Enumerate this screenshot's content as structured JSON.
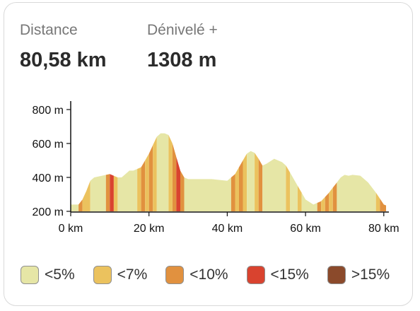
{
  "stats": {
    "distance_label": "Distance",
    "distance_value": "80,58 km",
    "elevation_label": "Dénivelé +",
    "elevation_value": "1308 m"
  },
  "chart_data": {
    "type": "area",
    "title": "",
    "xlabel": "",
    "ylabel": "",
    "xlim": [
      0,
      80.58
    ],
    "ylim": [
      200,
      850
    ],
    "x_ticks": [
      0,
      20,
      40,
      60,
      80
    ],
    "x_tick_labels": [
      "0 km",
      "20 km",
      "40 km",
      "60 km",
      "80 km"
    ],
    "y_ticks": [
      200,
      400,
      600,
      800
    ],
    "y_tick_labels": [
      "200 m",
      "400 m",
      "600 m",
      "800 m"
    ],
    "grid": false,
    "series": [
      {
        "x": [
          0,
          2,
          3,
          4,
          5,
          6,
          8,
          10,
          11,
          12,
          13,
          14,
          15,
          16,
          18,
          20,
          21,
          22,
          23,
          24,
          25,
          26,
          27,
          28,
          29,
          30,
          33,
          36,
          40,
          42,
          44,
          45,
          46,
          47,
          48,
          49,
          50,
          52,
          54,
          55,
          56,
          58,
          60,
          62,
          64,
          66,
          68,
          69,
          70,
          71,
          72,
          74,
          76,
          78,
          80,
          80.58
        ],
        "y": [
          240,
          240,
          270,
          320,
          380,
          400,
          410,
          420,
          410,
          400,
          400,
          420,
          440,
          440,
          460,
          540,
          590,
          640,
          660,
          660,
          650,
          600,
          520,
          440,
          400,
          390,
          390,
          390,
          380,
          420,
          500,
          540,
          555,
          545,
          510,
          470,
          480,
          510,
          490,
          470,
          430,
          350,
          270,
          240,
          260,
          310,
          370,
          400,
          415,
          410,
          415,
          410,
          370,
          310,
          240,
          235
        ]
      }
    ],
    "grade_segments": [
      {
        "x0": 0,
        "x1": 2,
        "grade": "<5%"
      },
      {
        "x0": 2,
        "x1": 3,
        "grade": "<10%"
      },
      {
        "x0": 3,
        "x1": 5,
        "grade": "<7%"
      },
      {
        "x0": 5,
        "x1": 9,
        "grade": "<5%"
      },
      {
        "x0": 9,
        "x1": 10,
        "grade": "<10%"
      },
      {
        "x0": 10,
        "x1": 11,
        "grade": "<15%"
      },
      {
        "x0": 11,
        "x1": 12,
        "grade": "<7%"
      },
      {
        "x0": 12,
        "x1": 17,
        "grade": "<5%"
      },
      {
        "x0": 17,
        "x1": 18,
        "grade": "<7%"
      },
      {
        "x0": 18,
        "x1": 19,
        "grade": "<10%"
      },
      {
        "x0": 19,
        "x1": 20,
        "grade": "<7%"
      },
      {
        "x0": 20,
        "x1": 21,
        "grade": "<10%"
      },
      {
        "x0": 21,
        "x1": 22,
        "grade": "<7%"
      },
      {
        "x0": 22,
        "x1": 25,
        "grade": "<5%"
      },
      {
        "x0": 25,
        "x1": 26,
        "grade": "<7%"
      },
      {
        "x0": 26,
        "x1": 27,
        "grade": "<10%"
      },
      {
        "x0": 27,
        "x1": 28,
        "grade": "<15%"
      },
      {
        "x0": 28,
        "x1": 29,
        "grade": "<10%"
      },
      {
        "x0": 29,
        "x1": 41,
        "grade": "<5%"
      },
      {
        "x0": 41,
        "x1": 42,
        "grade": "<10%"
      },
      {
        "x0": 42,
        "x1": 43,
        "grade": "<7%"
      },
      {
        "x0": 43,
        "x1": 44,
        "grade": "<10%"
      },
      {
        "x0": 44,
        "x1": 45,
        "grade": "<7%"
      },
      {
        "x0": 45,
        "x1": 47,
        "grade": "<5%"
      },
      {
        "x0": 47,
        "x1": 48,
        "grade": "<7%"
      },
      {
        "x0": 48,
        "x1": 49,
        "grade": "<10%"
      },
      {
        "x0": 49,
        "x1": 55,
        "grade": "<5%"
      },
      {
        "x0": 55,
        "x1": 56,
        "grade": "<7%"
      },
      {
        "x0": 56,
        "x1": 58,
        "grade": "<5%"
      },
      {
        "x0": 58,
        "x1": 59,
        "grade": "<7%"
      },
      {
        "x0": 59,
        "x1": 63,
        "grade": "<5%"
      },
      {
        "x0": 63,
        "x1": 64,
        "grade": "<10%"
      },
      {
        "x0": 64,
        "x1": 65,
        "grade": "<7%"
      },
      {
        "x0": 65,
        "x1": 66,
        "grade": "<10%"
      },
      {
        "x0": 66,
        "x1": 67,
        "grade": "<7%"
      },
      {
        "x0": 67,
        "x1": 68,
        "grade": "<10%"
      },
      {
        "x0": 68,
        "x1": 78,
        "grade": "<5%"
      },
      {
        "x0": 78,
        "x1": 79,
        "grade": "<7%"
      },
      {
        "x0": 79,
        "x1": 80.58,
        "grade": "<10%"
      }
    ],
    "legend": [
      {
        "label": "<5%",
        "color": "#e6e6a6"
      },
      {
        "label": "<7%",
        "color": "#ebc25e"
      },
      {
        "label": "<10%",
        "color": "#e1913f"
      },
      {
        "label": "<15%",
        "color": "#d9432f"
      },
      {
        "label": ">15%",
        "color": "#8b4a2b"
      }
    ],
    "legend_placement": "bottom"
  }
}
